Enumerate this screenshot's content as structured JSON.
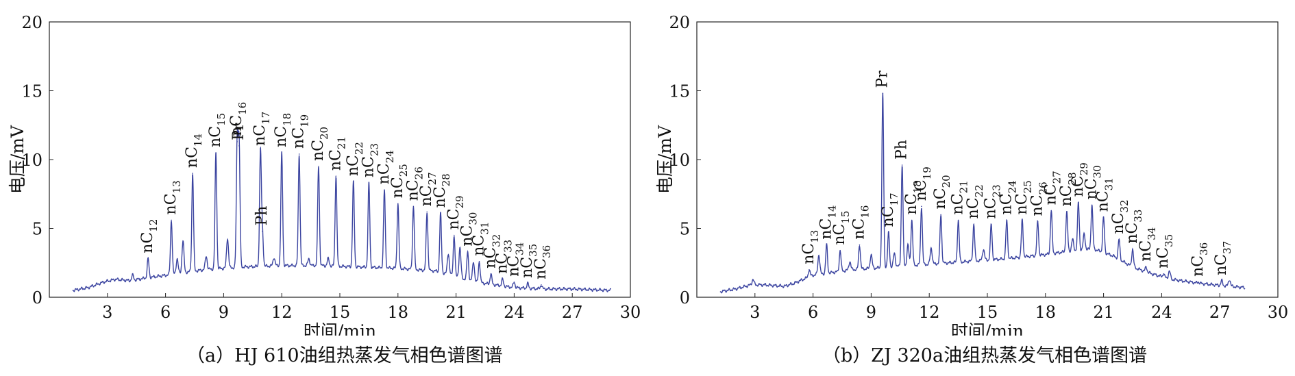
{
  "chart_data": [
    {
      "type": "line",
      "caption": "（a）HJ 610油组热蒸发气相色谱图谱",
      "xlabel": "时间/min",
      "ylabel": "电压/mV",
      "xlim": [
        0,
        30
      ],
      "ylim": [
        0,
        20
      ],
      "xticks": [
        3,
        6,
        9,
        12,
        15,
        18,
        21,
        24,
        27,
        30
      ],
      "yticks": [
        0,
        5,
        10,
        15,
        20
      ],
      "line_color": "#3b44a0",
      "baseline_x": [
        1.2,
        2.0,
        2.8,
        3.4,
        4.2,
        5.0,
        6.0,
        8.0,
        10.0,
        12.0,
        14.0,
        16.0,
        18.0,
        20.0,
        21.0,
        22.0,
        23.0,
        24.0,
        25.5,
        27.0,
        29.0
      ],
      "baseline_y": [
        0.5,
        0.7,
        1.1,
        1.3,
        1.2,
        1.4,
        1.6,
        2.0,
        2.2,
        2.3,
        2.3,
        2.2,
        2.1,
        1.9,
        1.5,
        1.1,
        0.9,
        0.7,
        0.6,
        0.6,
        0.5
      ],
      "peaks": [
        {
          "x": 5.1,
          "y": 2.8,
          "label": "nC",
          "sub": "12"
        },
        {
          "x": 6.3,
          "y": 5.6,
          "label": "nC",
          "sub": "13"
        },
        {
          "x": 7.4,
          "y": 9.0,
          "label": "nC",
          "sub": "14"
        },
        {
          "x": 8.6,
          "y": 10.5,
          "label": "nC",
          "sub": "15"
        },
        {
          "x": 9.7,
          "y": 11.3,
          "label": "nC",
          "sub": "16"
        },
        {
          "x": 9.8,
          "y": 11.0,
          "label": "Pr",
          "sub": ""
        },
        {
          "x": 10.9,
          "y": 10.6,
          "label": "nC",
          "sub": "17"
        },
        {
          "x": 11.0,
          "y": 4.8,
          "label": "Ph",
          "sub": ""
        },
        {
          "x": 12.0,
          "y": 10.5,
          "label": "nC",
          "sub": "18"
        },
        {
          "x": 12.9,
          "y": 10.4,
          "label": "nC",
          "sub": "19"
        },
        {
          "x": 13.9,
          "y": 9.5,
          "label": "nC",
          "sub": "20"
        },
        {
          "x": 14.8,
          "y": 8.8,
          "label": "nC",
          "sub": "21"
        },
        {
          "x": 15.7,
          "y": 8.4,
          "label": "nC",
          "sub": "22"
        },
        {
          "x": 16.5,
          "y": 8.3,
          "label": "nC",
          "sub": "23"
        },
        {
          "x": 17.3,
          "y": 7.8,
          "label": "nC",
          "sub": "24"
        },
        {
          "x": 18.0,
          "y": 6.8,
          "label": "nC",
          "sub": "25"
        },
        {
          "x": 18.8,
          "y": 6.6,
          "label": "nC",
          "sub": "26"
        },
        {
          "x": 19.5,
          "y": 6.2,
          "label": "nC",
          "sub": "27"
        },
        {
          "x": 20.2,
          "y": 6.1,
          "label": "nC",
          "sub": "28"
        },
        {
          "x": 20.9,
          "y": 4.5,
          "label": "nC",
          "sub": "29"
        },
        {
          "x": 21.6,
          "y": 3.3,
          "label": "nC",
          "sub": "30"
        },
        {
          "x": 22.2,
          "y": 2.6,
          "label": "nC",
          "sub": "31"
        },
        {
          "x": 22.8,
          "y": 1.7,
          "label": "nC",
          "sub": "32"
        },
        {
          "x": 23.4,
          "y": 1.3,
          "label": "nC",
          "sub": "33"
        },
        {
          "x": 24.0,
          "y": 1.1,
          "label": "nC",
          "sub": "34"
        },
        {
          "x": 24.7,
          "y": 1.0,
          "label": "nC",
          "sub": "35"
        },
        {
          "x": 25.4,
          "y": 0.9,
          "label": "nC",
          "sub": "36"
        }
      ],
      "minor_peaks": [
        {
          "x": 4.3,
          "y": 1.6
        },
        {
          "x": 6.6,
          "y": 2.8
        },
        {
          "x": 6.9,
          "y": 4.1
        },
        {
          "x": 8.1,
          "y": 3.0
        },
        {
          "x": 9.2,
          "y": 4.3
        },
        {
          "x": 11.6,
          "y": 2.9
        },
        {
          "x": 13.4,
          "y": 2.8
        },
        {
          "x": 14.4,
          "y": 2.8
        },
        {
          "x": 20.6,
          "y": 3.2
        },
        {
          "x": 21.2,
          "y": 3.6
        },
        {
          "x": 21.9,
          "y": 2.6
        }
      ]
    },
    {
      "type": "line",
      "caption": "（b）ZJ 320a油组热蒸发气相色谱图谱",
      "xlabel": "时间/min",
      "ylabel": "电压/mV",
      "xlim": [
        0,
        30
      ],
      "ylim": [
        0,
        20
      ],
      "xticks": [
        3,
        6,
        9,
        12,
        15,
        18,
        21,
        24,
        27,
        30
      ],
      "yticks": [
        0,
        5,
        10,
        15,
        20
      ],
      "line_color": "#3b44a0",
      "baseline_x": [
        1.2,
        2.0,
        2.8,
        3.5,
        4.5,
        5.0,
        6.0,
        8.0,
        10.0,
        12.0,
        14.0,
        16.0,
        18.0,
        19.5,
        20.5,
        21.5,
        22.5,
        23.5,
        24.5,
        26.0,
        27.5,
        28.3
      ],
      "baseline_y": [
        0.4,
        0.6,
        0.9,
        0.9,
        0.8,
        1.0,
        1.6,
        2.0,
        2.2,
        2.4,
        2.6,
        2.8,
        3.1,
        3.4,
        3.5,
        3.0,
        2.2,
        1.7,
        1.3,
        1.0,
        0.8,
        0.7
      ],
      "peaks": [
        {
          "x": 5.8,
          "y": 2.0,
          "label": "nC",
          "sub": "13"
        },
        {
          "x": 6.7,
          "y": 3.8,
          "label": "nC",
          "sub": "14"
        },
        {
          "x": 7.4,
          "y": 3.4,
          "label": "nC",
          "sub": "15"
        },
        {
          "x": 8.4,
          "y": 3.8,
          "label": "nC",
          "sub": "16"
        },
        {
          "x": 9.6,
          "y": 14.8,
          "label": "Pr",
          "sub": ""
        },
        {
          "x": 9.9,
          "y": 4.7,
          "label": "nC",
          "sub": "17"
        },
        {
          "x": 10.6,
          "y": 9.6,
          "label": "Ph",
          "sub": ""
        },
        {
          "x": 11.1,
          "y": 5.6,
          "label": "nC",
          "sub": "18"
        },
        {
          "x": 11.6,
          "y": 6.6,
          "label": "nC",
          "sub": "19"
        },
        {
          "x": 12.6,
          "y": 6.0,
          "label": "nC",
          "sub": "20"
        },
        {
          "x": 13.5,
          "y": 5.6,
          "label": "nC",
          "sub": "21"
        },
        {
          "x": 14.3,
          "y": 5.3,
          "label": "nC",
          "sub": "22"
        },
        {
          "x": 15.2,
          "y": 5.3,
          "label": "nC",
          "sub": "23"
        },
        {
          "x": 16.0,
          "y": 5.6,
          "label": "nC",
          "sub": "24"
        },
        {
          "x": 16.8,
          "y": 5.6,
          "label": "nC",
          "sub": "25"
        },
        {
          "x": 17.6,
          "y": 5.5,
          "label": "nC",
          "sub": "26"
        },
        {
          "x": 18.3,
          "y": 6.3,
          "label": "nC",
          "sub": "27"
        },
        {
          "x": 19.1,
          "y": 6.2,
          "label": "nC",
          "sub": "28"
        },
        {
          "x": 19.7,
          "y": 6.9,
          "label": "nC",
          "sub": "29"
        },
        {
          "x": 20.4,
          "y": 6.7,
          "label": "nC",
          "sub": "30"
        },
        {
          "x": 21.0,
          "y": 5.8,
          "label": "nC",
          "sub": "31"
        },
        {
          "x": 21.8,
          "y": 4.2,
          "label": "nC",
          "sub": "32"
        },
        {
          "x": 22.5,
          "y": 3.5,
          "label": "nC",
          "sub": "33"
        },
        {
          "x": 23.2,
          "y": 2.2,
          "label": "nC",
          "sub": "34"
        },
        {
          "x": 24.1,
          "y": 1.7,
          "label": "nC",
          "sub": "35"
        },
        {
          "x": 25.9,
          "y": 1.1,
          "label": "nC",
          "sub": "36"
        },
        {
          "x": 27.1,
          "y": 1.2,
          "label": "nC",
          "sub": "37"
        }
      ],
      "minor_peaks": [
        {
          "x": 2.9,
          "y": 1.3
        },
        {
          "x": 6.3,
          "y": 3.1
        },
        {
          "x": 7.9,
          "y": 2.6
        },
        {
          "x": 9.0,
          "y": 3.1
        },
        {
          "x": 10.2,
          "y": 3.2
        },
        {
          "x": 10.9,
          "y": 3.8
        },
        {
          "x": 12.1,
          "y": 3.6
        },
        {
          "x": 14.8,
          "y": 3.5
        },
        {
          "x": 19.4,
          "y": 4.2
        },
        {
          "x": 20.0,
          "y": 4.6
        },
        {
          "x": 24.4,
          "y": 1.9
        },
        {
          "x": 27.5,
          "y": 1.3
        }
      ]
    }
  ]
}
